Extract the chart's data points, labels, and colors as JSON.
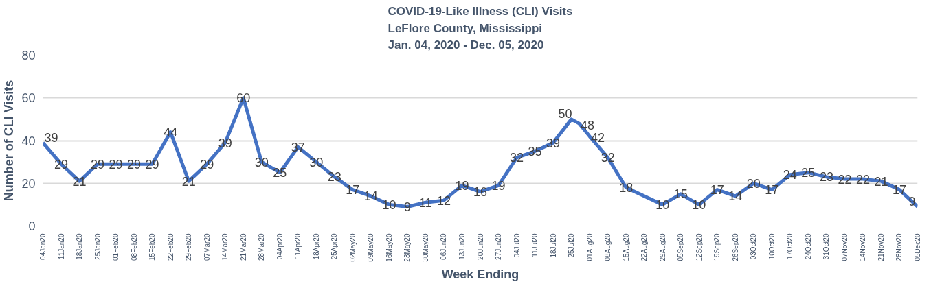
{
  "chart_data": {
    "type": "line",
    "title": "COVID-19-Like Illness (CLI) Visits\nLeFlore County, Mississippi\nJan. 04, 2020 - Dec. 05, 2020",
    "xlabel": "Week Ending",
    "ylabel": "Number of CLI Visits",
    "x": [
      "2020-01-04",
      "2020-01-11",
      "2020-01-18",
      "2020-01-25",
      "2020-02-01",
      "2020-02-08",
      "2020-02-15",
      "2020-02-22",
      "2020-02-29",
      "2020-03-07",
      "2020-03-14",
      "2020-03-21",
      "2020-03-28",
      "2020-04-04",
      "2020-04-11",
      "2020-04-18",
      "2020-04-25",
      "2020-05-02",
      "2020-05-09",
      "2020-05-16",
      "2020-05-23",
      "2020-05-30",
      "2020-06-06",
      "2020-06-13",
      "2020-06-20",
      "2020-06-27",
      "2020-07-04",
      "2020-07-11",
      "2020-07-18",
      "2020-07-25",
      "2020-07-28",
      "2020-08-01",
      "2020-08-08",
      "2020-08-15",
      "2020-08-29",
      "2020-09-05",
      "2020-09-12",
      "2020-09-19",
      "2020-09-26",
      "2020-10-03",
      "2020-10-10",
      "2020-10-17",
      "2020-10-24",
      "2020-10-31",
      "2020-11-07",
      "2020-11-14",
      "2020-11-21",
      "2020-11-28",
      "2020-12-05"
    ],
    "series": [
      {
        "color": "#4472c4",
        "values": [
          39,
          29,
          21,
          29,
          29,
          29,
          29,
          44,
          21,
          29,
          39,
          60,
          30,
          25,
          37,
          30,
          23,
          17,
          14,
          10,
          9,
          11,
          12,
          19,
          16,
          19,
          32,
          35,
          39,
          50,
          48,
          42,
          32,
          18,
          10,
          15,
          10,
          17,
          14,
          20,
          17,
          24,
          25,
          23,
          22,
          22,
          21,
          17,
          9
        ]
      }
    ],
    "data_labels": true,
    "line_style": "solid",
    "marker": "none",
    "grid": "y",
    "xlim": [
      "2020-01-04",
      "2020-12-05"
    ],
    "xticks": [
      {
        "value": "2020-01-04",
        "label": "04Jan20"
      },
      {
        "value": "2020-01-11",
        "label": "11Jan20"
      },
      {
        "value": "2020-01-18",
        "label": "18Jan20"
      },
      {
        "value": "2020-01-25",
        "label": "25Jan20"
      },
      {
        "value": "2020-02-01",
        "label": "01Feb20"
      },
      {
        "value": "2020-02-08",
        "label": "08Feb20"
      },
      {
        "value": "2020-02-15",
        "label": "15Feb20"
      },
      {
        "value": "2020-02-22",
        "label": "22Feb20"
      },
      {
        "value": "2020-02-29",
        "label": "29Feb20"
      },
      {
        "value": "2020-03-07",
        "label": "07Mar20"
      },
      {
        "value": "2020-03-14",
        "label": "14Mar20"
      },
      {
        "value": "2020-03-21",
        "label": "21Mar20"
      },
      {
        "value": "2020-03-28",
        "label": "28Mar20"
      },
      {
        "value": "2020-04-04",
        "label": "04Apr20"
      },
      {
        "value": "2020-04-11",
        "label": "11Apr20"
      },
      {
        "value": "2020-04-18",
        "label": "18Apr20"
      },
      {
        "value": "2020-04-25",
        "label": "25Apr20"
      },
      {
        "value": "2020-05-02",
        "label": "02May20"
      },
      {
        "value": "2020-05-09",
        "label": "09May20"
      },
      {
        "value": "2020-05-16",
        "label": "16May20"
      },
      {
        "value": "2020-05-23",
        "label": "23May20"
      },
      {
        "value": "2020-05-30",
        "label": "30May20"
      },
      {
        "value": "2020-06-06",
        "label": "06Jun20"
      },
      {
        "value": "2020-06-13",
        "label": "13Jun20"
      },
      {
        "value": "2020-06-20",
        "label": "20Jun20"
      },
      {
        "value": "2020-06-27",
        "label": "27Jun20"
      },
      {
        "value": "2020-07-04",
        "label": "04Jul20"
      },
      {
        "value": "2020-07-11",
        "label": "11Jul20"
      },
      {
        "value": "2020-07-18",
        "label": "18Jul20"
      },
      {
        "value": "2020-07-25",
        "label": "25Jul20"
      },
      {
        "value": "2020-08-01",
        "label": "01Aug20"
      },
      {
        "value": "2020-08-08",
        "label": "08Aug20"
      },
      {
        "value": "2020-08-15",
        "label": "15Aug20"
      },
      {
        "value": "2020-08-22",
        "label": "22Aug20"
      },
      {
        "value": "2020-08-29",
        "label": "29Aug20"
      },
      {
        "value": "2020-09-05",
        "label": "05Sep20"
      },
      {
        "value": "2020-09-12",
        "label": "12Sep20"
      },
      {
        "value": "2020-09-19",
        "label": "19Sep20"
      },
      {
        "value": "2020-09-26",
        "label": "26Sep20"
      },
      {
        "value": "2020-10-03",
        "label": "03Oct20"
      },
      {
        "value": "2020-10-10",
        "label": "10Oct20"
      },
      {
        "value": "2020-10-17",
        "label": "17Oct20"
      },
      {
        "value": "2020-10-24",
        "label": "24Oct20"
      },
      {
        "value": "2020-10-31",
        "label": "31Oct20"
      },
      {
        "value": "2020-11-07",
        "label": "07Nov20"
      },
      {
        "value": "2020-11-14",
        "label": "14Nov20"
      },
      {
        "value": "2020-11-21",
        "label": "21Nov20"
      },
      {
        "value": "2020-11-28",
        "label": "28Nov20"
      },
      {
        "value": "2020-12-05",
        "label": "05Dec20"
      }
    ],
    "ylim": [
      0,
      80
    ],
    "yticks": [
      0,
      20,
      40,
      60,
      80
    ]
  }
}
